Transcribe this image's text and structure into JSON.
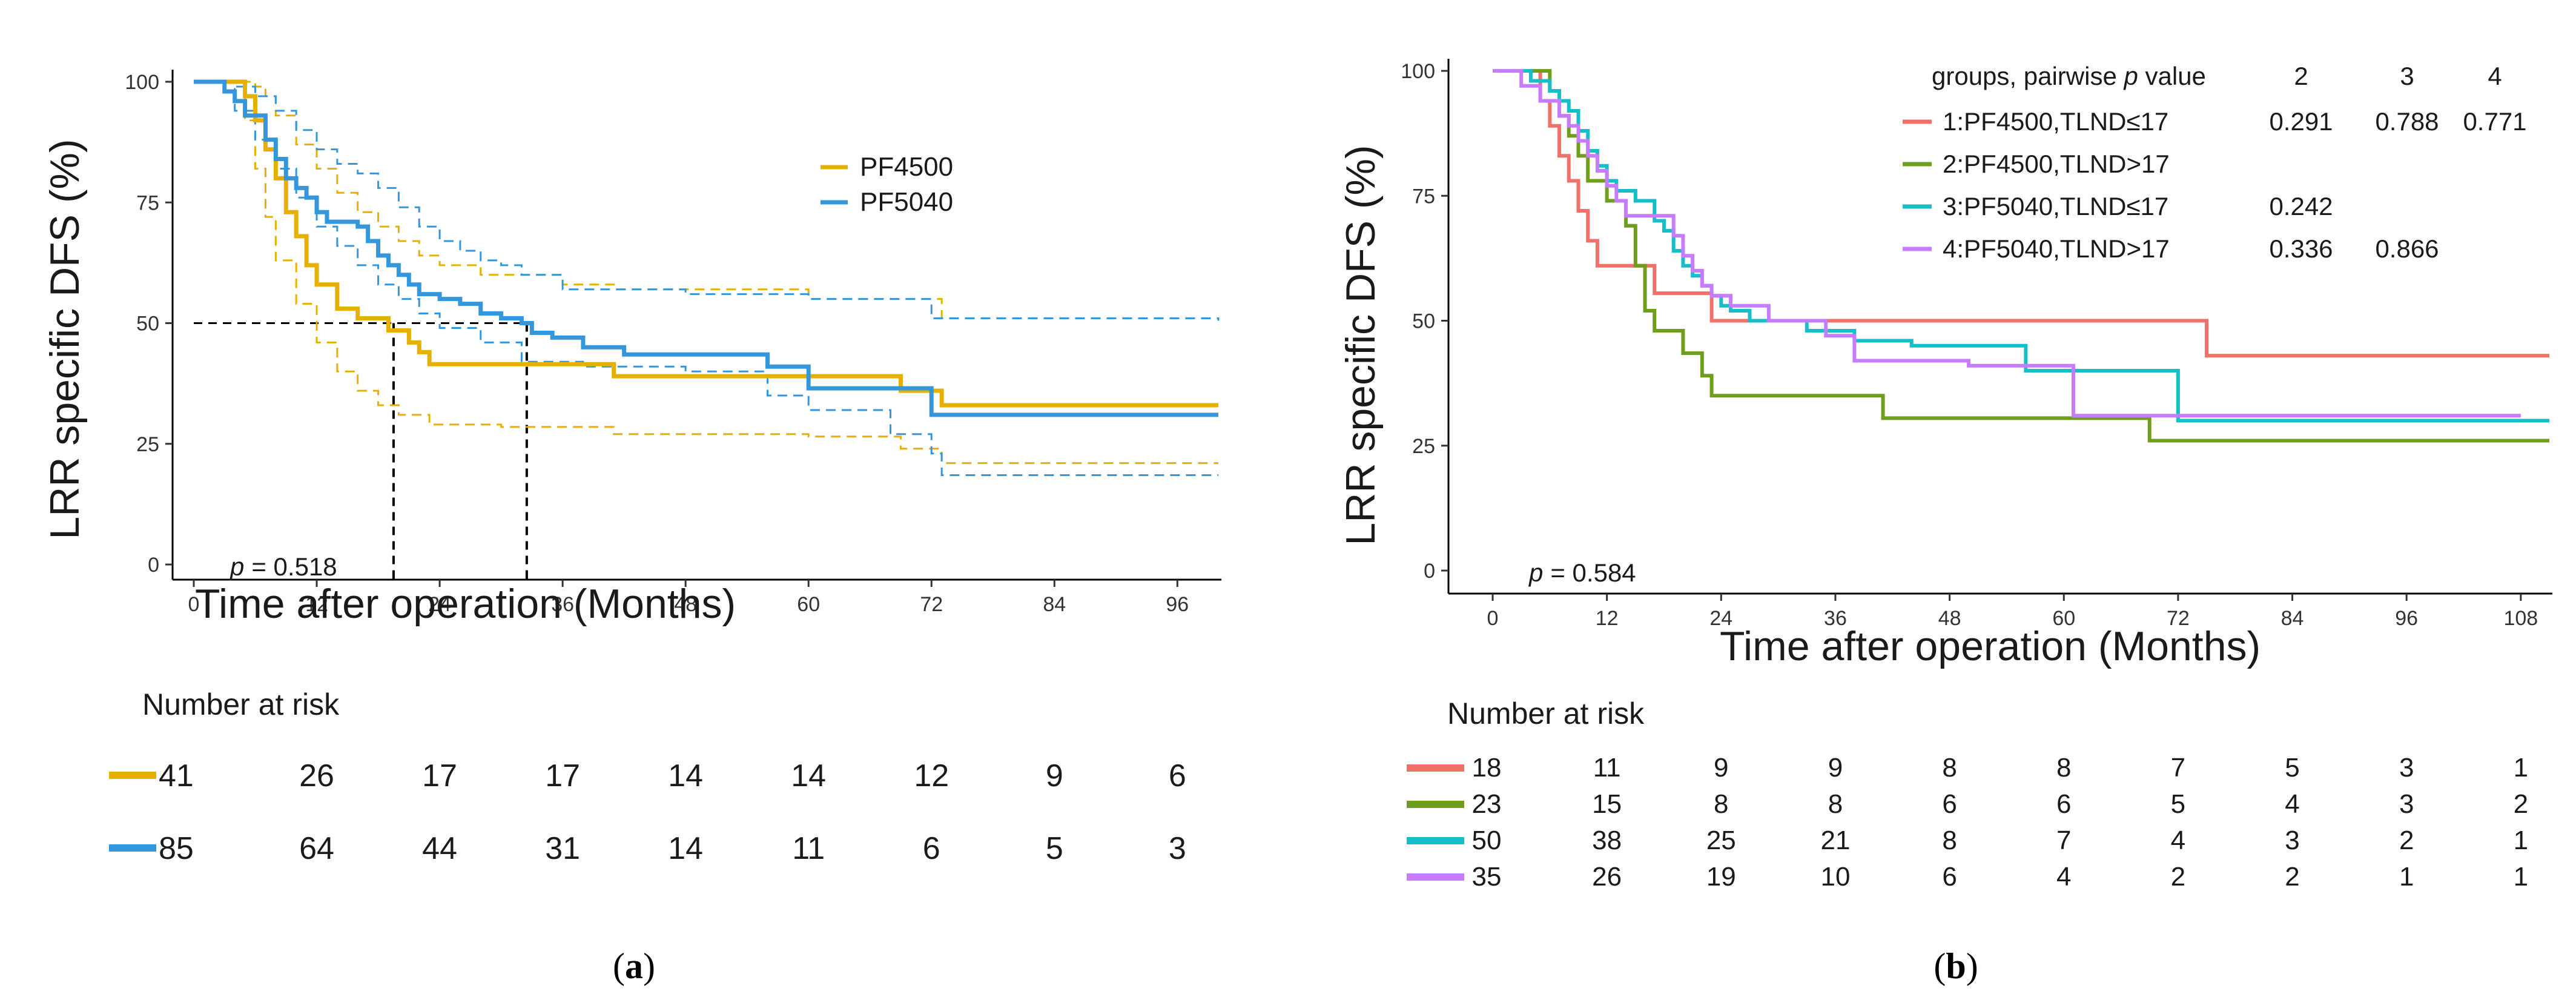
{
  "colors": {
    "pf4500": "#E6B000",
    "pf5040": "#3497DB",
    "g1": "#F0706A",
    "g2": "#6E9E1C",
    "g3": "#16BEC8",
    "g4": "#C77CFF"
  },
  "panel_a": {
    "caption_open": "(",
    "caption_letter": "a",
    "caption_close": ")",
    "p_label": "p",
    "p_value": "= 0.518",
    "risk_title": "Number at risk",
    "risk_rows": [
      [
        "41",
        "26",
        "17",
        "17",
        "14",
        "14",
        "12",
        "9",
        "6"
      ],
      [
        "85",
        "64",
        "44",
        "31",
        "14",
        "11",
        "6",
        "5",
        "3"
      ]
    ]
  },
  "panel_b": {
    "caption_open": "(",
    "caption_letter": "b",
    "caption_close": ")",
    "p_label": "p",
    "p_value": "= 0.584",
    "risk_title": "Number at risk",
    "legend_header_pre": "groups, pairwise ",
    "legend_header_p": "p",
    "legend_header_post": " value",
    "legend_cols": [
      "2",
      "3",
      "4"
    ],
    "pvals": [
      [
        "0.291",
        "0.788",
        "0.771"
      ],
      [
        "",
        "",
        ""
      ],
      [
        "0.242",
        "",
        ""
      ],
      [
        "0.336",
        "0.866",
        ""
      ]
    ],
    "risk_rows": [
      [
        "18",
        "11",
        "9",
        "9",
        "8",
        "8",
        "7",
        "5",
        "3",
        "1"
      ],
      [
        "23",
        "15",
        "8",
        "8",
        "6",
        "6",
        "5",
        "4",
        "3",
        "2"
      ],
      [
        "50",
        "38",
        "25",
        "21",
        "8",
        "7",
        "4",
        "3",
        "2",
        "1"
      ],
      [
        "35",
        "26",
        "19",
        "10",
        "6",
        "4",
        "2",
        "2",
        "1",
        "1"
      ]
    ]
  },
  "chart_data": [
    {
      "type": "line",
      "title": "(a)",
      "xlabel": "Time after operation (Months)",
      "ylabel": "LRR specific DFS (%)",
      "xlim": [
        0,
        100
      ],
      "ylim": [
        0,
        100
      ],
      "xticks": [
        0,
        12,
        24,
        36,
        48,
        60,
        72,
        84,
        96
      ],
      "yticks": [
        0,
        25,
        50,
        75,
        100
      ],
      "median_reference": {
        "y": 50,
        "x": [
          19.5,
          32.5
        ]
      },
      "series": [
        {
          "name": "PF4500",
          "color_key": "pf4500",
          "steps": [
            [
              0,
              100
            ],
            [
              5,
              97
            ],
            [
              6,
              92
            ],
            [
              7,
              86
            ],
            [
              8,
              80
            ],
            [
              9,
              73
            ],
            [
              10,
              68
            ],
            [
              11,
              62
            ],
            [
              12,
              58
            ],
            [
              14,
              53
            ],
            [
              16,
              51
            ],
            [
              19,
              48.5
            ],
            [
              21,
              46
            ],
            [
              22,
              44
            ],
            [
              23,
              41.5
            ],
            [
              41,
              39
            ],
            [
              69,
              36
            ],
            [
              73,
              33
            ],
            [
              100,
              33
            ]
          ],
          "ci_upper": [
            [
              0,
              100
            ],
            [
              6,
              99
            ],
            [
              7,
              97
            ],
            [
              8,
              93
            ],
            [
              10,
              87
            ],
            [
              12,
              82
            ],
            [
              14,
              77
            ],
            [
              16,
              73
            ],
            [
              18,
              70
            ],
            [
              20,
              67
            ],
            [
              22,
              64
            ],
            [
              24,
              62
            ],
            [
              28,
              60
            ],
            [
              36,
              58
            ],
            [
              41,
              57
            ],
            [
              56,
              57
            ],
            [
              60,
              55
            ],
            [
              73,
              51
            ],
            [
              100,
              51
            ]
          ],
          "ci_lower": [
            [
              0,
              100
            ],
            [
              5,
              92
            ],
            [
              6,
              82
            ],
            [
              7,
              72
            ],
            [
              8,
              63
            ],
            [
              10,
              54
            ],
            [
              12,
              46
            ],
            [
              14,
              40
            ],
            [
              16,
              36
            ],
            [
              18,
              33
            ],
            [
              20,
              31
            ],
            [
              23,
              29
            ],
            [
              30,
              28.5
            ],
            [
              41,
              27
            ],
            [
              60,
              26.5
            ],
            [
              69,
              24
            ],
            [
              73,
              21
            ],
            [
              100,
              21
            ]
          ]
        },
        {
          "name": "PF5040",
          "color_key": "pf5040",
          "steps": [
            [
              0,
              100
            ],
            [
              3,
              98
            ],
            [
              4,
              96
            ],
            [
              5,
              93
            ],
            [
              7,
              88
            ],
            [
              8,
              84
            ],
            [
              9,
              80
            ],
            [
              10,
              78
            ],
            [
              11,
              76
            ],
            [
              12,
              73
            ],
            [
              13,
              71
            ],
            [
              16,
              70
            ],
            [
              17,
              67
            ],
            [
              18,
              64
            ],
            [
              19,
              62
            ],
            [
              20,
              60
            ],
            [
              21,
              58
            ],
            [
              22,
              56
            ],
            [
              24,
              55
            ],
            [
              26,
              54
            ],
            [
              28,
              52
            ],
            [
              30,
              51
            ],
            [
              32,
              50
            ],
            [
              33,
              48
            ],
            [
              35,
              47
            ],
            [
              38,
              45
            ],
            [
              42,
              43.5
            ],
            [
              56,
              41
            ],
            [
              60,
              36.5
            ],
            [
              72,
              31
            ],
            [
              100,
              31
            ]
          ],
          "ci_upper": [
            [
              0,
              100
            ],
            [
              4,
              99
            ],
            [
              6,
              97
            ],
            [
              8,
              94
            ],
            [
              10,
              90
            ],
            [
              12,
              86
            ],
            [
              14,
              83
            ],
            [
              16,
              81
            ],
            [
              18,
              78
            ],
            [
              20,
              74
            ],
            [
              22,
              70
            ],
            [
              24,
              67
            ],
            [
              26,
              65
            ],
            [
              28,
              63
            ],
            [
              30,
              62
            ],
            [
              32,
              60
            ],
            [
              36,
              57
            ],
            [
              48,
              56
            ],
            [
              60,
              55
            ],
            [
              72,
              51
            ],
            [
              100,
              50.5
            ]
          ],
          "ci_lower": [
            [
              0,
              100
            ],
            [
              4,
              94
            ],
            [
              6,
              88
            ],
            [
              8,
              82
            ],
            [
              10,
              76
            ],
            [
              12,
              70
            ],
            [
              14,
              66
            ],
            [
              16,
              62
            ],
            [
              18,
              58
            ],
            [
              20,
              55
            ],
            [
              22,
              52
            ],
            [
              24,
              49
            ],
            [
              28,
              46
            ],
            [
              32,
              42
            ],
            [
              38,
              41
            ],
            [
              48,
              40
            ],
            [
              56,
              35
            ],
            [
              60,
              32
            ],
            [
              68,
              27
            ],
            [
              72,
              23
            ],
            [
              73,
              18.5
            ],
            [
              100,
              18.5
            ]
          ]
        }
      ],
      "x_pos_risk": [
        0,
        12,
        24,
        36,
        48,
        60,
        72,
        84,
        96
      ],
      "risk_table_title": "Number at risk"
    },
    {
      "type": "line",
      "title": "(b)",
      "xlabel": "Time after operation (Months)",
      "ylabel": "LRR specific DFS (%)",
      "xlim": [
        0,
        111
      ],
      "ylim": [
        0,
        100
      ],
      "xticks": [
        0,
        12,
        24,
        36,
        48,
        60,
        72,
        84,
        96,
        108
      ],
      "yticks": [
        0,
        25,
        50,
        75,
        100
      ],
      "legend_title": "groups, pairwise p value",
      "series": [
        {
          "name": "1:PF4500,TLND≤17",
          "color_key": "g1",
          "steps": [
            [
              0,
              100
            ],
            [
              5,
              94
            ],
            [
              6,
              89
            ],
            [
              7,
              83
            ],
            [
              8,
              78
            ],
            [
              9,
              72
            ],
            [
              10,
              66
            ],
            [
              11,
              61
            ],
            [
              17,
              55.5
            ],
            [
              23,
              50
            ],
            [
              75,
              43
            ],
            [
              111,
              43
            ]
          ]
        },
        {
          "name": "2:PF4500,TLND>17",
          "color_key": "g2",
          "steps": [
            [
              0,
              100
            ],
            [
              6,
              96
            ],
            [
              7,
              91
            ],
            [
              8,
              87
            ],
            [
              9,
              83
            ],
            [
              10,
              78
            ],
            [
              12,
              74
            ],
            [
              14,
              69
            ],
            [
              15,
              61
            ],
            [
              16,
              52
            ],
            [
              17,
              48
            ],
            [
              20,
              43.5
            ],
            [
              22,
              39
            ],
            [
              23,
              35
            ],
            [
              41,
              30.5
            ],
            [
              69,
              26
            ],
            [
              111,
              26
            ]
          ]
        },
        {
          "name": "3:PF5040,TLND≤17",
          "color_key": "g3",
          "steps": [
            [
              0,
              100
            ],
            [
              4,
              98
            ],
            [
              6,
              96
            ],
            [
              7,
              94
            ],
            [
              8,
              92
            ],
            [
              9,
              88
            ],
            [
              10,
              84
            ],
            [
              11,
              81
            ],
            [
              12,
              78
            ],
            [
              13,
              76
            ],
            [
              15,
              74
            ],
            [
              17,
              70
            ],
            [
              18,
              68
            ],
            [
              19,
              64
            ],
            [
              20,
              61
            ],
            [
              21,
              59
            ],
            [
              22,
              57
            ],
            [
              23,
              55
            ],
            [
              24,
              53
            ],
            [
              25,
              52
            ],
            [
              27,
              50
            ],
            [
              33,
              48
            ],
            [
              38,
              46
            ],
            [
              44,
              45
            ],
            [
              56,
              40
            ],
            [
              72,
              30
            ],
            [
              111,
              30
            ]
          ]
        },
        {
          "name": "4:PF5040,TLND>17",
          "color_key": "g4",
          "steps": [
            [
              0,
              100
            ],
            [
              3,
              97
            ],
            [
              5,
              94
            ],
            [
              7,
              91
            ],
            [
              8,
              89
            ],
            [
              9,
              86
            ],
            [
              10,
              83
            ],
            [
              11,
              80
            ],
            [
              12,
              77
            ],
            [
              13,
              74
            ],
            [
              14,
              71
            ],
            [
              19,
              67
            ],
            [
              20,
              63
            ],
            [
              21,
              60
            ],
            [
              22,
              57
            ],
            [
              23,
              55
            ],
            [
              25,
              53
            ],
            [
              29,
              50
            ],
            [
              35,
              47
            ],
            [
              38,
              42
            ],
            [
              50,
              41
            ],
            [
              61,
              31
            ],
            [
              108,
              31
            ]
          ]
        }
      ],
      "pairwise_p": {
        "columns": [
          "2",
          "3",
          "4"
        ],
        "rows": [
          [
            "0.291",
            "0.788",
            "0.771"
          ],
          [
            "",
            "",
            ""
          ],
          [
            "0.242",
            "",
            ""
          ],
          [
            "0.336",
            "0.866",
            ""
          ]
        ]
      },
      "x_pos_risk": [
        0,
        12,
        24,
        36,
        48,
        60,
        72,
        84,
        96,
        108
      ],
      "risk_table_title": "Number at risk"
    }
  ]
}
